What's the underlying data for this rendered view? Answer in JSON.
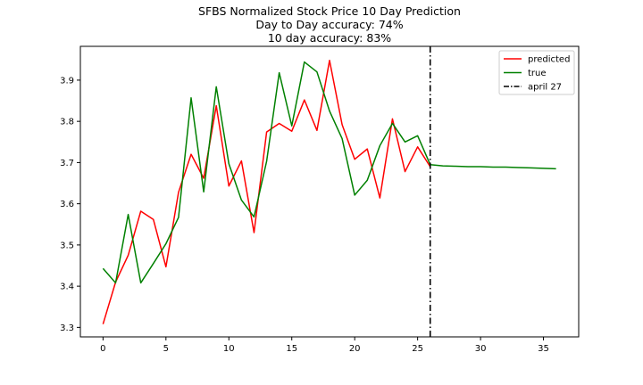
{
  "chart_data": {
    "type": "line",
    "title_lines": [
      "SFBS Normalized Stock Price 10 Day Prediction",
      "Day to Day accuracy: 74%",
      "10 day accuracy: 83%"
    ],
    "xlabel": "",
    "ylabel": "",
    "xlim": [
      -1.8,
      37.8
    ],
    "ylim": [
      3.277,
      3.982
    ],
    "xticks": [
      0,
      5,
      10,
      15,
      20,
      25,
      30,
      35
    ],
    "xtick_labels": [
      "0",
      "5",
      "10",
      "15",
      "20",
      "25",
      "30",
      "35"
    ],
    "yticks": [
      3.3,
      3.4,
      3.5,
      3.6,
      3.7,
      3.8,
      3.9
    ],
    "ytick_labels": [
      "3.3",
      "3.4",
      "3.5",
      "3.6",
      "3.7",
      "3.8",
      "3.9"
    ],
    "grid": false,
    "legend_position": "top-right",
    "series": [
      {
        "name": "predicted",
        "color": "#ff0000",
        "x": [
          0,
          1,
          2,
          3,
          4,
          5,
          6,
          7,
          8,
          9,
          10,
          11,
          12,
          13,
          14,
          15,
          16,
          17,
          18,
          19,
          20,
          21,
          22,
          23,
          24,
          25,
          26
        ],
        "y": [
          3.308,
          3.41,
          3.475,
          3.582,
          3.562,
          3.447,
          3.628,
          3.72,
          3.662,
          3.838,
          3.643,
          3.704,
          3.53,
          3.774,
          3.795,
          3.776,
          3.852,
          3.778,
          3.948,
          3.792,
          3.708,
          3.733,
          3.614,
          3.806,
          3.678,
          3.738,
          3.69
        ]
      },
      {
        "name": "true",
        "color": "#008000",
        "x": [
          0,
          1,
          2,
          3,
          4,
          5,
          6,
          7,
          8,
          9,
          10,
          11,
          12,
          13,
          14,
          15,
          16,
          17,
          18,
          19,
          20,
          21,
          22,
          23,
          24,
          25,
          26,
          27,
          28,
          29,
          30,
          31,
          32,
          33,
          34,
          35,
          36
        ],
        "y": [
          3.443,
          3.408,
          3.574,
          3.408,
          3.455,
          3.503,
          3.567,
          3.857,
          3.629,
          3.884,
          3.697,
          3.609,
          3.568,
          3.703,
          3.918,
          3.789,
          3.944,
          3.92,
          3.825,
          3.758,
          3.621,
          3.657,
          3.741,
          3.795,
          3.75,
          3.765,
          3.695,
          3.692,
          3.691,
          3.69,
          3.69,
          3.689,
          3.689,
          3.688,
          3.687,
          3.686,
          3.685
        ]
      },
      {
        "name": "april 27",
        "color": "#000000",
        "style": "dashdot",
        "vertical_x": 26
      }
    ]
  }
}
